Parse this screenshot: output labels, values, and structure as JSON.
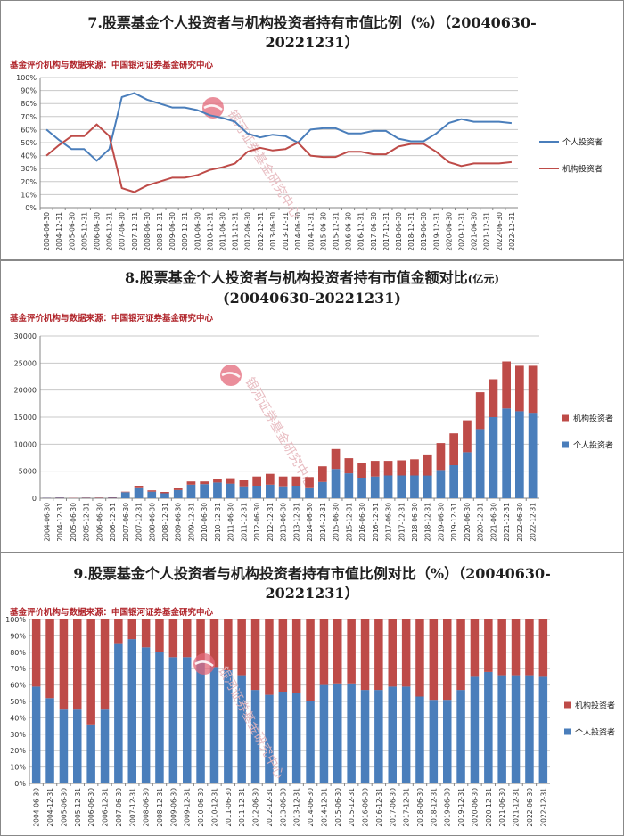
{
  "chart_data": [
    {
      "type": "line",
      "title_line1": "7.股票基金个人投资者与机构投资者持有市值比例（%）（20040630-",
      "title_line2": "20221231）",
      "source": "基金评价机构与数据来源：中国银河证券基金研究中心",
      "watermark": "银河证券基金研究中心",
      "categories": [
        "2004-06-30",
        "2004-12-31",
        "2005-06-30",
        "2005-12-31",
        "2006-06-30",
        "2006-12-31",
        "2007-06-30",
        "2007-12-31",
        "2008-06-30",
        "2008-12-31",
        "2009-06-30",
        "2009-12-31",
        "2010-06-30",
        "2010-12-31",
        "2011-06-30",
        "2011-12-31",
        "2012-06-30",
        "2012-12-31",
        "2013-06-30",
        "2013-12-31",
        "2014-06-30",
        "2014-12-31",
        "2015-06-30",
        "2015-12-31",
        "2016-06-30",
        "2016-12-31",
        "2017-06-30",
        "2017-12-31",
        "2018-06-30",
        "2018-12-31",
        "2019-06-30",
        "2019-12-31",
        "2020-06-30",
        "2020-12-31",
        "2021-06-30",
        "2021-12-31",
        "2022-06-30",
        "2022-12-31"
      ],
      "yticks": [
        "0%",
        "10%",
        "20%",
        "30%",
        "40%",
        "50%",
        "60%",
        "70%",
        "80%",
        "90%",
        "100%"
      ],
      "ylim": [
        0,
        100
      ],
      "series": [
        {
          "name": "个人投资者",
          "color": "#4a7ebb",
          "values": [
            60,
            52,
            45,
            45,
            36,
            45,
            85,
            88,
            83,
            80,
            77,
            77,
            75,
            71,
            69,
            66,
            57,
            54,
            56,
            55,
            50,
            60,
            61,
            61,
            57,
            57,
            59,
            59,
            53,
            51,
            51,
            57,
            65,
            68,
            66,
            66,
            66,
            65
          ]
        },
        {
          "name": "机构投资者",
          "color": "#be4b48",
          "values": [
            40,
            48,
            55,
            55,
            64,
            55,
            15,
            12,
            17,
            20,
            23,
            23,
            25,
            29,
            31,
            34,
            43,
            46,
            44,
            45,
            50,
            40,
            39,
            39,
            43,
            43,
            41,
            41,
            47,
            49,
            49,
            43,
            35,
            32,
            34,
            34,
            34,
            35
          ]
        }
      ],
      "legend": "right"
    },
    {
      "type": "bar",
      "stacked": true,
      "title_main": "8.股票基金个人投资者与机构投资者持有市值金额对比",
      "title_unit": "(亿元)",
      "title_line2": "(20040630-20221231)",
      "source": "基金评价机构与数据来源：中国银河证券基金研究中心",
      "watermark": "银河证券基金研究中心",
      "categories": [
        "2004-06-30",
        "2004-12-31",
        "2005-06-30",
        "2005-12-31",
        "2006-06-30",
        "2006-12-31",
        "2007-06-30",
        "2007-12-31",
        "2008-06-30",
        "2008-12-31",
        "2009-06-30",
        "2009-12-31",
        "2010-06-30",
        "2010-12-31",
        "2011-06-30",
        "2011-12-31",
        "2012-06-30",
        "2012-12-31",
        "2013-06-30",
        "2013-12-31",
        "2014-06-30",
        "2014-12-31",
        "2015-06-30",
        "2015-12-31",
        "2016-06-30",
        "2016-12-31",
        "2017-06-30",
        "2017-12-31",
        "2018-06-30",
        "2018-12-31",
        "2019-06-30",
        "2019-12-31",
        "2020-06-30",
        "2020-12-31",
        "2021-06-30",
        "2021-12-31",
        "2022-06-30",
        "2022-12-31"
      ],
      "yticks": [
        "0",
        "5000",
        "10000",
        "15000",
        "20000",
        "25000",
        "30000"
      ],
      "ylim": [
        0,
        30000
      ],
      "series": [
        {
          "name": "个人投资者",
          "color": "#4a7ebb",
          "values": [
            60,
            80,
            40,
            60,
            50,
            80,
            1100,
            2000,
            1200,
            900,
            1500,
            2500,
            2600,
            2900,
            2700,
            2200,
            2300,
            2500,
            2200,
            2300,
            2000,
            3000,
            5400,
            4600,
            3800,
            4000,
            4200,
            4200,
            4200,
            4200,
            5200,
            6100,
            8500,
            12800,
            15000,
            16600,
            16100,
            15800
          ]
        },
        {
          "name": "机构投资者",
          "color": "#be4b48",
          "values": [
            40,
            70,
            50,
            70,
            90,
            90,
            100,
            300,
            250,
            250,
            400,
            600,
            500,
            700,
            1000,
            1100,
            1700,
            2000,
            1800,
            1700,
            1900,
            2900,
            3700,
            2800,
            2700,
            2900,
            2700,
            2800,
            3000,
            3900,
            5000,
            5900,
            5900,
            6800,
            7000,
            8700,
            8400,
            8700
          ]
        }
      ],
      "legend": "right"
    },
    {
      "type": "bar",
      "stacked": true,
      "percent": true,
      "title_line1": "9.股票基金个人投资者与机构投资者持有市值比例对比（%）（20040630-",
      "title_line2": "20221231）",
      "source": "基金评价机构与数据来源：中国银河证券基金研究中心",
      "watermark": "银河证券基金研究中心",
      "categories": [
        "2004-06-30",
        "2004-12-31",
        "2005-06-30",
        "2005-12-31",
        "2006-06-30",
        "2006-12-31",
        "2007-06-30",
        "2007-12-31",
        "2008-06-30",
        "2008-12-31",
        "2009-06-30",
        "2009-12-31",
        "2010-06-30",
        "2010-12-31",
        "2011-06-30",
        "2011-12-31",
        "2012-06-30",
        "2012-12-31",
        "2013-06-30",
        "2013-12-31",
        "2014-06-30",
        "2014-12-31",
        "2015-06-30",
        "2015-12-31",
        "2016-06-30",
        "2016-12-31",
        "2017-06-30",
        "2017-12-31",
        "2018-06-30",
        "2018-12-31",
        "2019-06-30",
        "2019-12-31",
        "2020-06-30",
        "2020-12-31",
        "2021-06-30",
        "2021-12-31",
        "2022-06-30",
        "2022-12-31"
      ],
      "yticks": [
        "0%",
        "10%",
        "20%",
        "30%",
        "40%",
        "50%",
        "60%",
        "70%",
        "80%",
        "90%",
        "100%"
      ],
      "ylim": [
        0,
        100
      ],
      "series": [
        {
          "name": "个人投资者",
          "color": "#4a7ebb",
          "values": [
            59,
            52,
            45,
            45,
            36,
            45,
            85,
            88,
            83,
            80,
            77,
            77,
            75,
            71,
            69,
            66,
            57,
            54,
            56,
            55,
            50,
            60,
            61,
            61,
            57,
            57,
            59,
            59,
            53,
            51,
            51,
            57,
            65,
            68,
            66,
            66,
            66,
            65
          ]
        },
        {
          "name": "机构投资者",
          "color": "#be4b48",
          "values": [
            41,
            48,
            55,
            55,
            64,
            55,
            15,
            12,
            17,
            20,
            23,
            23,
            25,
            29,
            31,
            34,
            43,
            46,
            44,
            45,
            50,
            40,
            39,
            39,
            43,
            43,
            41,
            41,
            47,
            49,
            49,
            43,
            35,
            32,
            34,
            34,
            34,
            35
          ]
        }
      ],
      "legend": "right"
    }
  ]
}
